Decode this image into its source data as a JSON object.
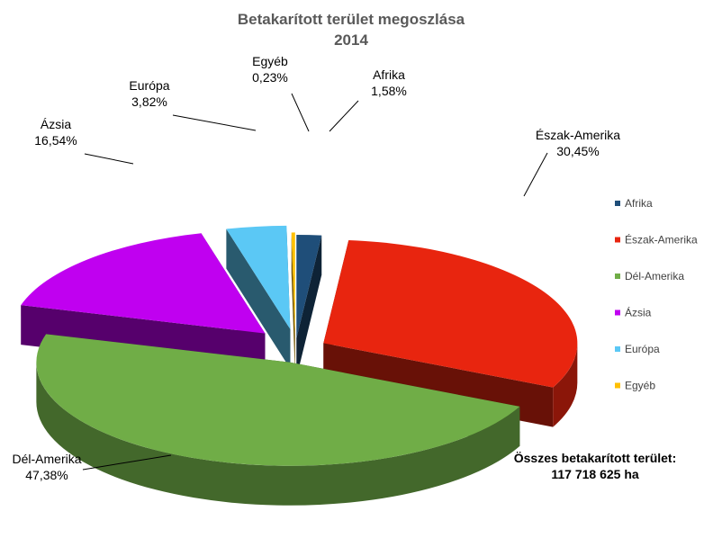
{
  "chart_data": {
    "type": "pie",
    "title": "Betakarított terület megoszlása",
    "subtitle": "2014",
    "slices": [
      {
        "name": "Afrika",
        "value": 1.58,
        "label": "1,58%",
        "color": "#1F4E79"
      },
      {
        "name": "Észak-Amerika",
        "value": 30.45,
        "label": "30,45%",
        "color": "#E8250F"
      },
      {
        "name": "Dél-Amerika",
        "value": 47.38,
        "label": "47,38%",
        "color": "#70AD47"
      },
      {
        "name": "Ázsia",
        "value": 16.54,
        "label": "16,54%",
        "color": "#C000F0"
      },
      {
        "name": "Európa",
        "value": 3.82,
        "label": "3,82%",
        "color": "#5BC8F5"
      },
      {
        "name": "Egyéb",
        "value": 0.23,
        "label": "0,23%",
        "color": "#FFC000"
      }
    ],
    "legend": [
      "Afrika",
      "Észak-Amerika",
      "Dél-Amerika",
      "Ázsia",
      "Európa",
      "Egyéb"
    ],
    "legend_position": "right",
    "style": "3d-exploded"
  },
  "annotation": {
    "line1": "Összes betakarított terület:",
    "line2": "117 718 625 ha"
  }
}
